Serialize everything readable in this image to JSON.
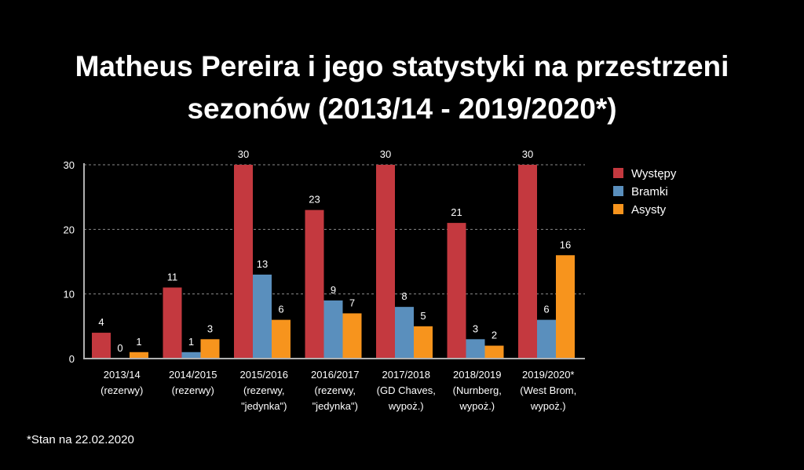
{
  "chart_data": {
    "type": "bar",
    "title_lines": [
      "Matheus Pereira i jego statystyki na przestrzeni",
      "sezonów (2013/14 - 2019/2020*)"
    ],
    "categories": [
      [
        "2013/14",
        "(rezerwy)"
      ],
      [
        "2014/2015",
        "(rezerwy)"
      ],
      [
        "2015/2016",
        "(rezerwy,",
        "\"jedynka\")"
      ],
      [
        "2016/2017",
        "(rezerwy,",
        "\"jedynka\")"
      ],
      [
        "2017/2018",
        "(GD Chaves,",
        "wypoż.)"
      ],
      [
        "2018/2019",
        "(Nurnberg,",
        "wypoż.)"
      ],
      [
        "2019/2020*",
        "(West Brom,",
        "wypoż.)"
      ]
    ],
    "series": [
      {
        "name": "Występy",
        "color": "#c4393f",
        "values": [
          4,
          11,
          30,
          23,
          30,
          21,
          30
        ]
      },
      {
        "name": "Bramki",
        "color": "#5a8fbd",
        "values": [
          0,
          1,
          13,
          9,
          8,
          3,
          6
        ]
      },
      {
        "name": "Asysty",
        "color": "#f7941d",
        "values": [
          1,
          3,
          6,
          7,
          5,
          2,
          16
        ]
      }
    ],
    "yticks": [
      0,
      10,
      20,
      30
    ],
    "ylim": [
      0,
      30
    ],
    "grid": true,
    "legend": "right",
    "footnote": "*Stan na 22.02.2020"
  }
}
